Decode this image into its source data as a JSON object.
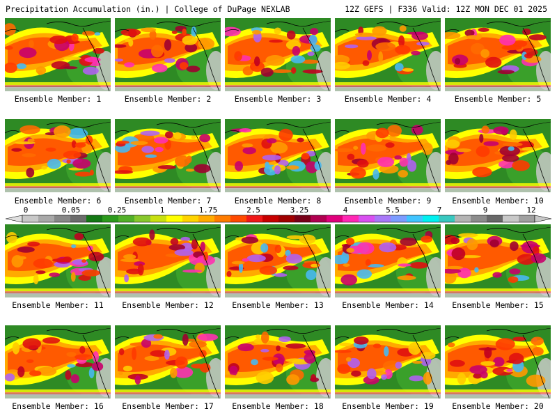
{
  "header": {
    "left_title": "Precipitation Accumulation (in.) | College of DuPage NEXLAB",
    "right_title": "12Z GEFS | F336 Valid: 12Z MON DEC 01 2025"
  },
  "panels": [
    {
      "label": "Ensemble Member: 1"
    },
    {
      "label": "Ensemble Member: 2"
    },
    {
      "label": "Ensemble Member: 3"
    },
    {
      "label": "Ensemble Member: 4"
    },
    {
      "label": "Ensemble Member: 5"
    },
    {
      "label": "Ensemble Member: 6"
    },
    {
      "label": "Ensemble Member: 7"
    },
    {
      "label": "Ensemble Member: 8"
    },
    {
      "label": "Ensemble Member: 9"
    },
    {
      "label": "Ensemble Member: 10"
    },
    {
      "label": "Ensemble Member: 11"
    },
    {
      "label": "Ensemble Member: 12"
    },
    {
      "label": "Ensemble Member: 13"
    },
    {
      "label": "Ensemble Member: 14"
    },
    {
      "label": "Ensemble Member: 15"
    },
    {
      "label": "Ensemble Member: 16"
    },
    {
      "label": "Ensemble Member: 17"
    },
    {
      "label": "Ensemble Member: 18"
    },
    {
      "label": "Ensemble Member: 19"
    },
    {
      "label": "Ensemble Member: 20"
    }
  ],
  "colorbar": {
    "tick_labels": [
      "0",
      "0.05",
      "0.25",
      "1",
      "1.75",
      "2.5",
      "3.25",
      "4",
      "5.5",
      "7",
      "9",
      "12"
    ],
    "colors": [
      "#c8c8c8",
      "#a8a8a8",
      "#888888",
      "#6c6c6c",
      "#147814",
      "#2c9a1c",
      "#52b028",
      "#88c82c",
      "#c8e010",
      "#ffff00",
      "#ffd400",
      "#ffaa00",
      "#ff7c00",
      "#ff4a00",
      "#f01818",
      "#c80000",
      "#a00000",
      "#780018",
      "#b00050",
      "#e0007c",
      "#ff28b4",
      "#d850f0",
      "#a878f8",
      "#7c9cff",
      "#40c4ff",
      "#00f0f0",
      "#38c8c0",
      "#b4b4b4",
      "#8c8c8c",
      "#686868",
      "#c8c8c8",
      "#a0a0a0"
    ]
  }
}
